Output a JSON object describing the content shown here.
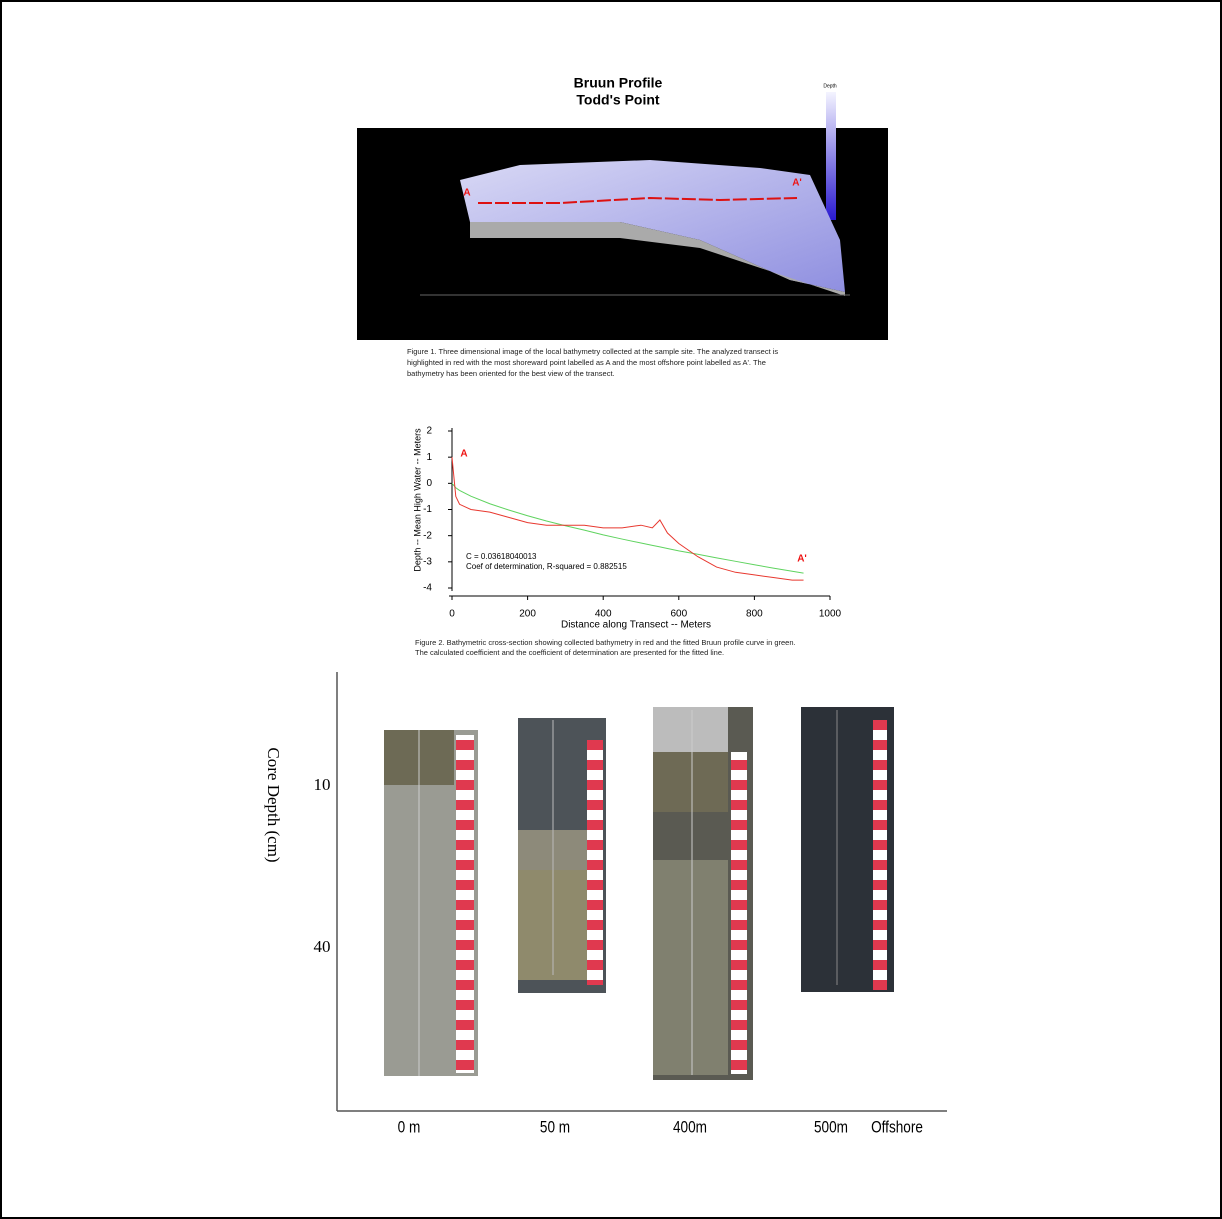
{
  "figure1": {
    "title_lines": [
      "Bruun Profile",
      "Todd's Point"
    ],
    "colorbar_label": "Depth",
    "point_labels": [
      "A",
      "A'"
    ],
    "caption_lines": [
      "Figure 1.  Three dimensional image of the local bathymetry collected at the sample site. The analyzed transect is",
      "highlighted in red with the most shoreward point labelled as A and the most offshore point labelled as A'.  The",
      "bathymetry has been oriented for the best view of the transect."
    ]
  },
  "figure2": {
    "type": "line",
    "xlabel": "Distance along Transect -- Meters",
    "ylabel": "Depth -- Mean High Water -- Meters",
    "xlim": [
      0,
      1000
    ],
    "ylim": [
      -4,
      2
    ],
    "xticks": [
      0,
      200,
      400,
      600,
      800,
      1000
    ],
    "yticks": [
      -4,
      -3,
      -2,
      -1,
      0,
      1,
      2
    ],
    "x": [
      0,
      10,
      20,
      50,
      100,
      150,
      200,
      250,
      300,
      350,
      400,
      450,
      500,
      530,
      550,
      570,
      600,
      650,
      700,
      750,
      800,
      850,
      900,
      930
    ],
    "series": [
      {
        "color": "#e8382f",
        "values": [
          1.0,
          -0.5,
          -0.8,
          -1.0,
          -1.1,
          -1.3,
          -1.5,
          -1.6,
          -1.6,
          -1.6,
          -1.7,
          -1.7,
          -1.6,
          -1.7,
          -1.4,
          -1.9,
          -2.3,
          -2.8,
          -3.2,
          -3.4,
          -3.5,
          -3.6,
          -3.7,
          -3.7
        ]
      },
      {
        "color": "#5fd35f",
        "values": [
          0,
          -0.17,
          -0.27,
          -0.49,
          -0.78,
          -1.02,
          -1.24,
          -1.44,
          -1.62,
          -1.79,
          -1.97,
          -2.13,
          -2.28,
          -2.37,
          -2.43,
          -2.49,
          -2.58,
          -2.71,
          -2.85,
          -2.98,
          -3.11,
          -3.24,
          -3.36,
          -3.43
        ]
      }
    ],
    "annotations": [
      "C = 0.03618040013",
      "Coef of determination, R-squared = 0.882515"
    ],
    "point_labels": [
      "A",
      "A'"
    ],
    "caption_lines": [
      "Figure 2.  Bathymetric cross-section showing collected bathymetry in red and the fitted Bruun profile curve in green.",
      "The calculated coefficient and the coefficient of determination are presented for the fitted line."
    ]
  },
  "figure3": {
    "ylabel": "Core Depth (cm)",
    "yticks": [
      10,
      40
    ],
    "core_labels": [
      "0 m",
      "50 m",
      "400m",
      "500m",
      "Offshore"
    ]
  }
}
